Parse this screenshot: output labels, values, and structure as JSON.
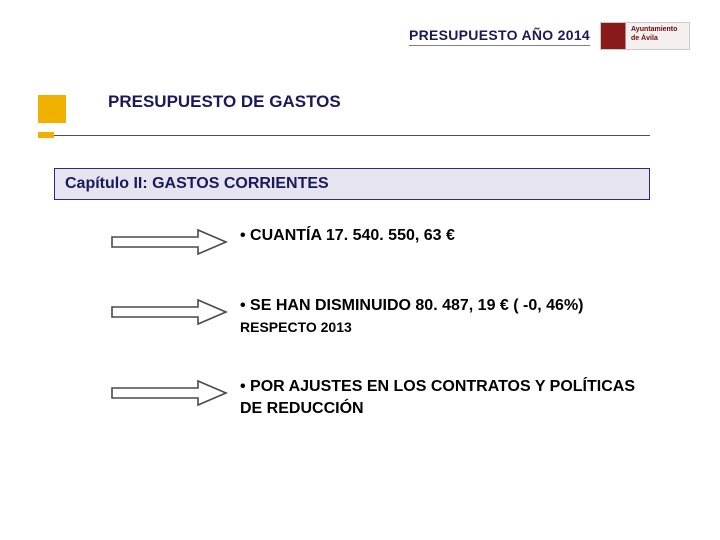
{
  "header": {
    "title": "PRESUPUESTO AÑO 2014",
    "logo_top": "Ayuntamiento",
    "logo_bottom": "de Ávila"
  },
  "subtitle": "PRESUPUESTO DE GASTOS",
  "chapter": "Capítulo II: GASTOS CORRIENTES",
  "bullets": {
    "b1": "• CUANTÍA 17. 540. 550, 63  €",
    "b2_a": "• SE HAN DISMINUIDO 80. 487, 19 € ( -0, 46%) ",
    "b2_b": "RESPECTO 2013",
    "b3": "• POR AJUSTES EN LOS CONTRATOS Y POLÍTICAS DE REDUCCIÓN"
  },
  "styling": {
    "accent_color": "#1a1a5a",
    "orange": "#f0b000",
    "chapter_bg": "#e6e4ef",
    "chapter_border": "#2a2a80",
    "arrow_stroke": "#4a4a4a",
    "arrow_fill": "#ffffff",
    "arrow_width": 118,
    "arrow_height": 30,
    "page_bg": "#ffffff",
    "font_family": "Verdana"
  }
}
